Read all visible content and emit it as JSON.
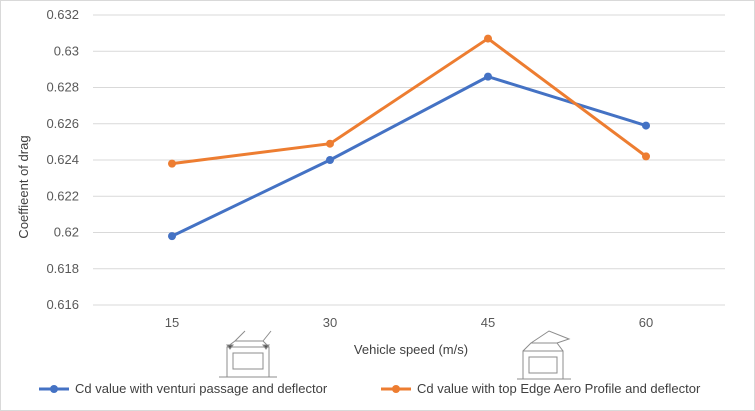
{
  "chart_data": {
    "type": "line",
    "title": "",
    "xlabel": "Vehicle speed (m/s)",
    "ylabel": "Coeffieent of drag",
    "categories": [
      "15",
      "30",
      "45",
      "60"
    ],
    "ylim": [
      0.616,
      0.632
    ],
    "yticks": [
      "0.616",
      "0.618",
      "0.62",
      "0.622",
      "0.624",
      "0.626",
      "0.628",
      "0.63",
      "0.632"
    ],
    "grid": true,
    "legend_position": "bottom",
    "series": [
      {
        "name": "Cd value with venturi passage and deflector",
        "color": "#4472C4",
        "values": [
          0.6198,
          0.624,
          0.6286,
          0.6259
        ]
      },
      {
        "name": "Cd value with top Edge Aero Profile and deflector",
        "color": "#ED7D31",
        "values": [
          0.6238,
          0.6249,
          0.6307,
          0.6242
        ]
      }
    ]
  }
}
